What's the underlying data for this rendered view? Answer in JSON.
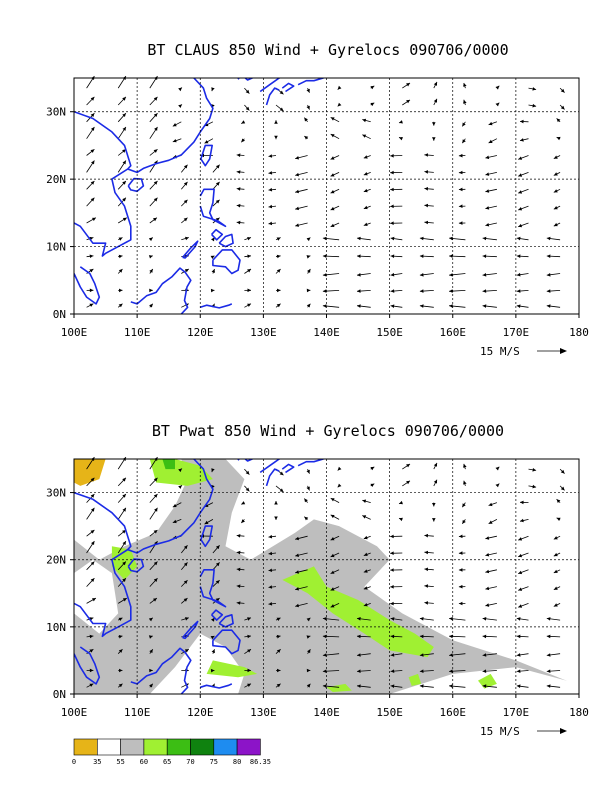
{
  "chart_data": [
    {
      "type": "vector-field",
      "title": "BT CLAUS 850 Wind + Gyrelocs 090706/0000",
      "x_ticks": [
        "100E",
        "110E",
        "120E",
        "130E",
        "140E",
        "150E",
        "160E",
        "170E",
        "180"
      ],
      "y_ticks": [
        "0N",
        "10N",
        "20N",
        "30N"
      ],
      "xlim": [
        100,
        180
      ],
      "ylim": [
        0,
        35
      ],
      "reference_vector": {
        "label": "15 M/S",
        "speed": 15
      },
      "grid": true,
      "coastline_color": "#1b2be6"
    },
    {
      "type": "filled-contour-vector-field",
      "title": "BT Pwat 850 Wind + Gyrelocs 090706/0000",
      "x_ticks": [
        "100E",
        "110E",
        "120E",
        "130E",
        "140E",
        "150E",
        "160E",
        "170E",
        "180"
      ],
      "y_ticks": [
        "0N",
        "10N",
        "20N",
        "30N"
      ],
      "xlim": [
        100,
        180
      ],
      "ylim": [
        0,
        35
      ],
      "reference_vector": {
        "label": "15 M/S",
        "speed": 15
      },
      "grid": true,
      "coastline_color": "#1b2be6",
      "colorbar": {
        "labels": [
          "0",
          "35",
          "55",
          "60",
          "65",
          "70",
          "75",
          "80",
          "86.35"
        ],
        "colors": [
          "#e6b418",
          "#ffffff",
          "#bebebe",
          "#a0f032",
          "#3cbe14",
          "#0f820f",
          "#1e8cf0",
          "#8c14c8"
        ]
      }
    }
  ]
}
